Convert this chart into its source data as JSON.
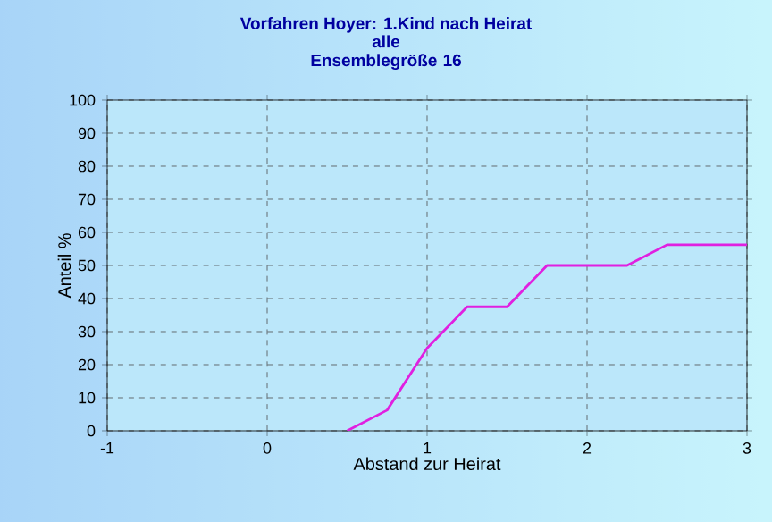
{
  "chart_data": {
    "type": "line",
    "title": "Vorfahren Hoyer: 1.Kind nach Heirat",
    "subtitle": "alle Ensemblegröße 16",
    "xlabel": "Abstand zur Heirat",
    "ylabel": "Anteil %",
    "x": [
      0.5,
      0.75,
      1.0,
      1.25,
      1.5,
      1.75,
      2.25,
      2.5,
      3.0
    ],
    "series": [
      {
        "color": "#e020e0",
        "values": [
          0,
          6.25,
          25,
          37.5,
          37.5,
          50,
          50,
          56.25,
          56.25
        ]
      }
    ],
    "xlim": [
      -1,
      3
    ],
    "xticks": [
      -1,
      0,
      1,
      2,
      3
    ],
    "ylim": [
      0,
      100
    ],
    "yticks": [
      0,
      10,
      20,
      30,
      40,
      50,
      60,
      70,
      80,
      90,
      100
    ],
    "grid": true,
    "marker": "none",
    "line_style": "solid"
  }
}
